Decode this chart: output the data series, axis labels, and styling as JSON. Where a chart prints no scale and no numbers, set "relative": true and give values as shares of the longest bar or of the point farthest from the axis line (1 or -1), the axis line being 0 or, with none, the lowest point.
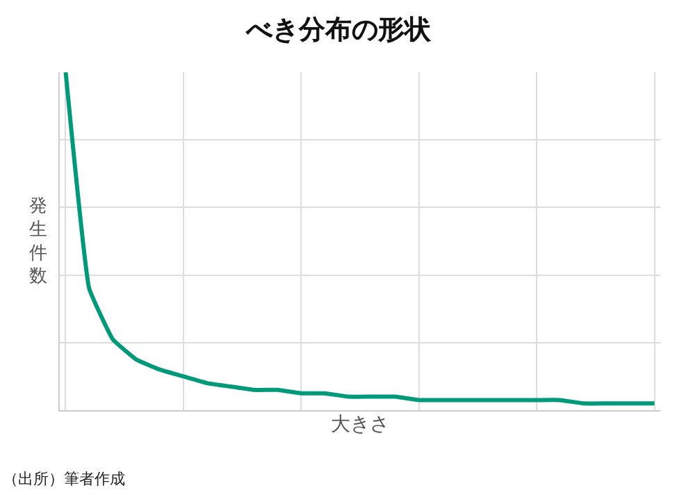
{
  "chart_data": {
    "type": "line",
    "title": "べき分布の形状",
    "xlabel": "大きさ",
    "ylabel": "発生件数",
    "relative": true,
    "grid": true,
    "tick_labels": false,
    "marker": "none",
    "line_style": "solid",
    "categories": [
      null,
      null,
      null,
      null,
      null,
      null,
      null,
      null,
      null,
      null,
      null,
      null,
      null,
      null,
      null,
      null,
      null,
      null,
      null,
      null,
      null,
      null,
      null,
      null,
      null,
      null
    ],
    "series": [
      {
        "color": "#009a7a",
        "values": [
          1.0,
          0.36,
          0.21,
          0.15,
          0.12,
          0.1,
          0.08,
          0.07,
          0.06,
          0.06,
          0.05,
          0.05,
          0.04,
          0.04,
          0.04,
          0.03,
          0.03,
          0.03,
          0.03,
          0.03,
          0.03,
          0.03,
          0.02,
          0.02,
          0.02,
          0.02
        ]
      }
    ],
    "annotations": [
      "（出所）筆者作成"
    ]
  }
}
